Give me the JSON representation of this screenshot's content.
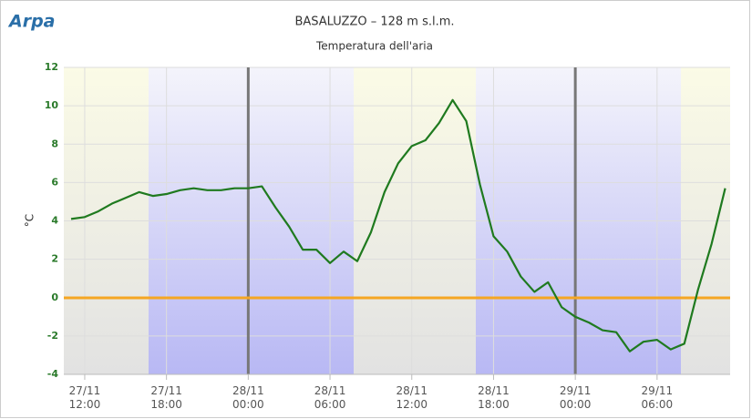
{
  "logo": "Arpa",
  "chart_data": {
    "type": "line",
    "title": "BASALUZZO – 128 m s.l.m.",
    "subtitle": "Temperatura dell'aria",
    "y_label": "°C",
    "categories": [
      null,
      [
        "27/11",
        "12:00"
      ],
      null,
      null,
      null,
      null,
      null,
      [
        "27/11",
        "18:00"
      ],
      null,
      null,
      null,
      null,
      null,
      [
        "28/11",
        "00:00"
      ],
      null,
      null,
      null,
      null,
      null,
      [
        "28/11",
        "06:00"
      ],
      null,
      null,
      null,
      null,
      null,
      [
        "28/11",
        "12:00"
      ],
      null,
      null,
      null,
      null,
      null,
      [
        "28/11",
        "18:00"
      ],
      null,
      null,
      null,
      null,
      null,
      [
        "29/11",
        "00:00"
      ],
      null,
      null,
      null,
      null,
      null,
      [
        "29/11",
        "06:00"
      ],
      null,
      null,
      null,
      null,
      null
    ],
    "series": [
      {
        "name": "Temperatura dell'aria",
        "color": "#1f7a1f",
        "values": [
          4.1,
          4.2,
          4.5,
          4.9,
          5.2,
          5.5,
          5.3,
          5.4,
          5.6,
          5.7,
          5.6,
          5.6,
          5.7,
          5.7,
          5.8,
          4.7,
          3.7,
          2.5,
          2.5,
          1.8,
          2.4,
          1.9,
          3.4,
          5.5,
          7.0,
          7.9,
          8.2,
          9.1,
          10.3,
          9.2,
          5.9,
          3.2,
          2.4,
          1.1,
          0.3,
          0.8,
          -0.5,
          -1.0,
          -1.3,
          -1.7,
          -1.8,
          -2.8,
          -2.3,
          -2.2,
          -2.7,
          -2.4,
          0.4,
          2.8,
          5.7
        ]
      }
    ],
    "ylim": [
      -4,
      12
    ],
    "yticks": [
      -4,
      -2,
      0,
      2,
      4,
      6,
      8,
      10,
      12
    ],
    "grid": true
  }
}
